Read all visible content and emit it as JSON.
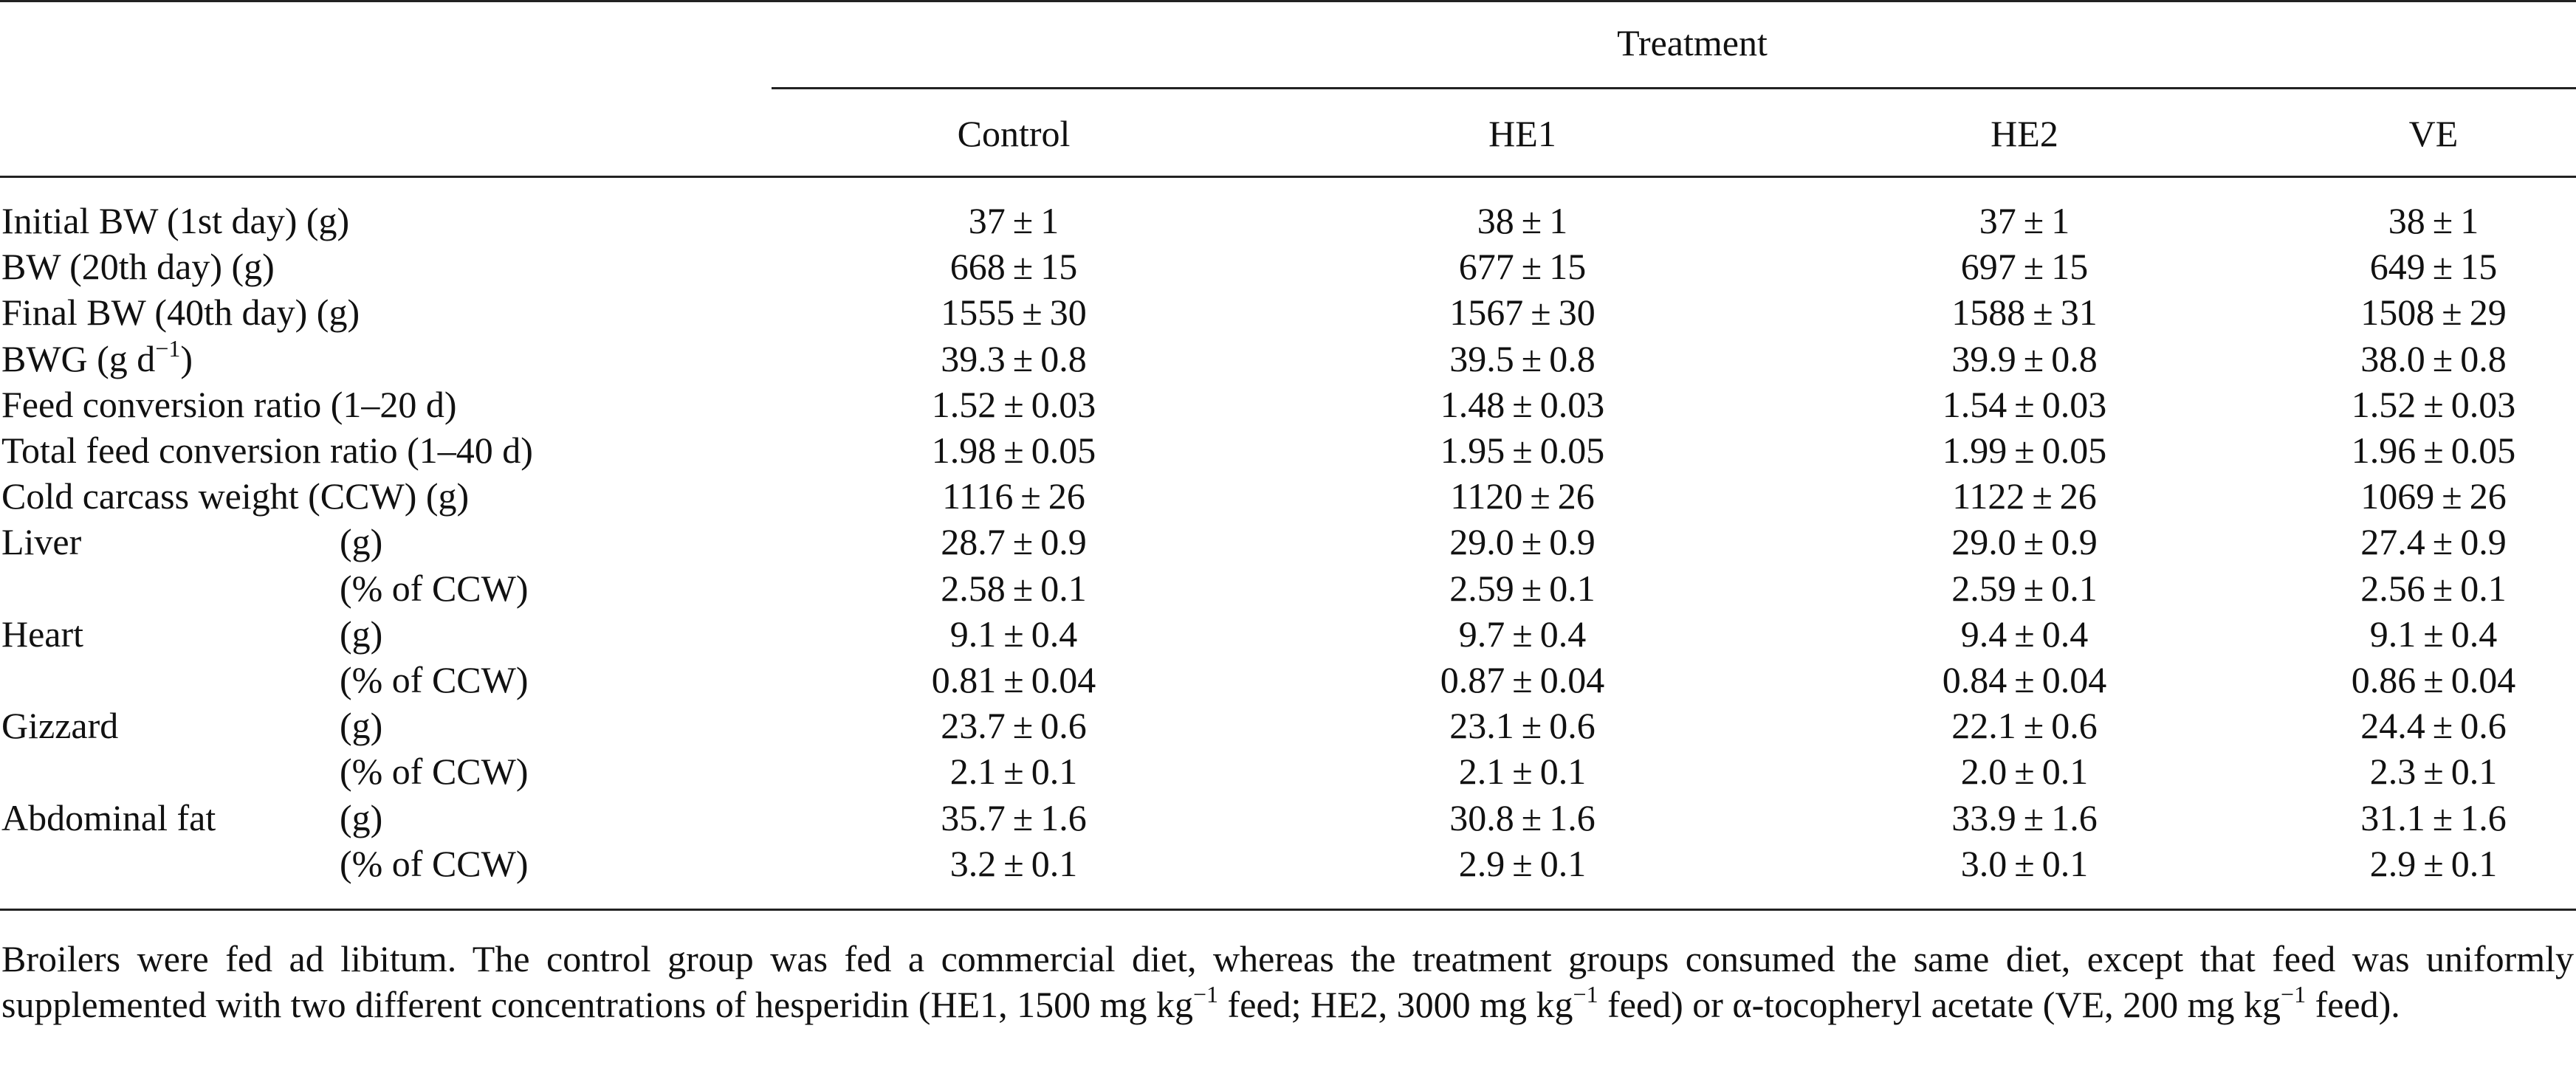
{
  "table": {
    "group_header": "Treatment",
    "columns": [
      "Control",
      "HE1",
      "HE2",
      "VE"
    ],
    "rows": [
      {
        "label": "Initial BW (1st day) (g)",
        "unit": "",
        "values": [
          "37 ± 1",
          "38 ± 1",
          "37 ± 1",
          "38 ± 1"
        ]
      },
      {
        "label": "BW (20th day) (g)",
        "unit": "",
        "values": [
          "668 ± 15",
          "677 ± 15",
          "697 ± 15",
          "649 ± 15"
        ]
      },
      {
        "label": "Final BW (40th day) (g)",
        "unit": "",
        "values": [
          "1555 ± 30",
          "1567 ± 30",
          "1588 ± 31",
          "1508 ± 29"
        ]
      },
      {
        "label": "BWG (g d",
        "label_sup": "−1",
        "label_after": ")",
        "unit": "",
        "values": [
          "39.3 ± 0.8",
          "39.5 ± 0.8",
          "39.9 ± 0.8",
          "38.0 ± 0.8"
        ]
      },
      {
        "label": "Feed conversion ratio (1–20 d)",
        "unit": "",
        "values": [
          "1.52 ± 0.03",
          "1.48 ± 0.03",
          "1.54 ± 0.03",
          "1.52 ± 0.03"
        ]
      },
      {
        "label": "Total feed conversion ratio (1–40 d)",
        "unit": "",
        "values": [
          "1.98 ± 0.05",
          "1.95 ± 0.05",
          "1.99 ± 0.05",
          "1.96 ± 0.05"
        ]
      },
      {
        "label": "Cold carcass weight (CCW) (g)",
        "unit": "",
        "values": [
          "1116 ± 26",
          "1120 ± 26",
          "1122 ± 26",
          "1069 ± 26"
        ]
      },
      {
        "label": "Liver",
        "unit": "(g)",
        "values": [
          "28.7 ± 0.9",
          "29.0 ± 0.9",
          "29.0 ± 0.9",
          "27.4 ± 0.9"
        ]
      },
      {
        "label": "",
        "unit": "(% of CCW)",
        "values": [
          "2.58 ± 0.1",
          "2.59 ± 0.1",
          "2.59 ± 0.1",
          "2.56 ± 0.1"
        ]
      },
      {
        "label": "Heart",
        "unit": "(g)",
        "values": [
          "9.1 ± 0.4",
          "9.7 ± 0.4",
          "9.4 ± 0.4",
          "9.1 ± 0.4"
        ]
      },
      {
        "label": "",
        "unit": "(% of CCW)",
        "values": [
          "0.81 ± 0.04",
          "0.87 ± 0.04",
          "0.84 ± 0.04",
          "0.86 ± 0.04"
        ]
      },
      {
        "label": "Gizzard",
        "unit": "(g)",
        "values": [
          "23.7 ± 0.6",
          "23.1 ± 0.6",
          "22.1 ± 0.6",
          "24.4 ± 0.6"
        ]
      },
      {
        "label": "",
        "unit": "(% of CCW)",
        "values": [
          "2.1 ± 0.1",
          "2.1 ± 0.1",
          "2.0 ± 0.1",
          "2.3 ± 0.1"
        ]
      },
      {
        "label": "Abdominal fat",
        "unit": "(g)",
        "values": [
          "35.7 ± 1.6",
          "30.8 ± 1.6",
          "33.9 ± 1.6",
          "31.1 ± 1.6"
        ]
      },
      {
        "label": "",
        "unit": "(% of CCW)",
        "values": [
          "3.2 ± 0.1",
          "2.9 ± 0.1",
          "3.0 ± 0.1",
          "2.9 ± 0.1"
        ]
      }
    ]
  },
  "footnote": {
    "parts": [
      "Broilers were fed ad libitum. The control group was fed a commercial diet, whereas the treatment groups consumed the same diet, except that feed was uniformly supplemented with two different concentrations of hesperidin (HE1, 1500 mg kg",
      "−1",
      " feed; HE2, 3000 mg kg",
      "−1",
      " feed) or α-tocopheryl acetate (VE, 200 mg kg",
      "−1",
      " feed)."
    ]
  }
}
